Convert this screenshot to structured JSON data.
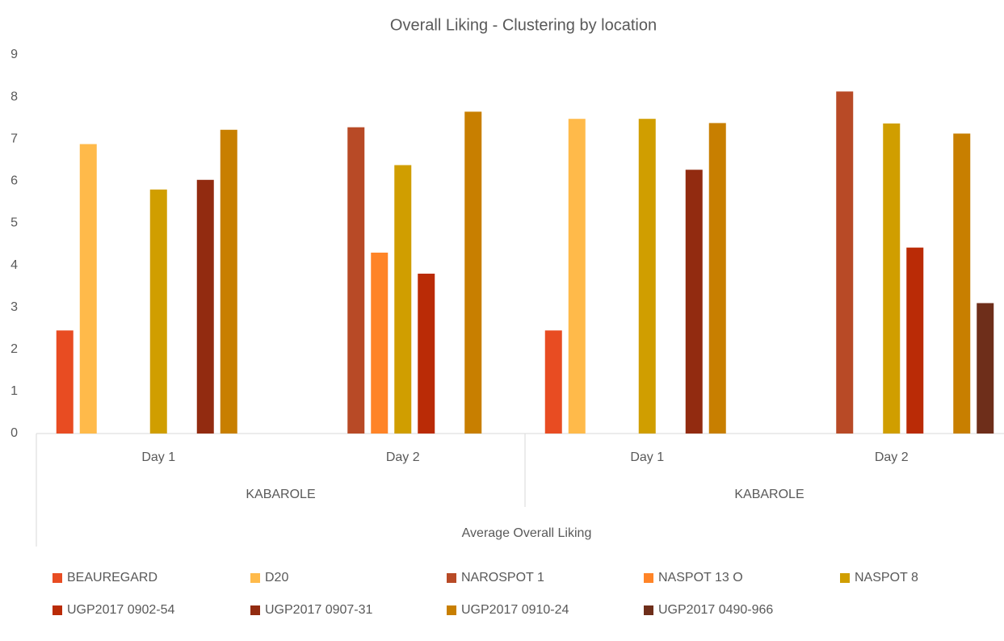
{
  "chart_data": {
    "type": "bar",
    "title": "Overall Liking - Clustering by location",
    "categories": [
      "Day 1",
      "Day 2",
      "Day 1",
      "Day 2"
    ],
    "category_groups": [
      "KABAROLE",
      "KABAROLE"
    ],
    "category_super": "Average Overall Liking",
    "ylim": [
      0,
      9
    ],
    "yticks": [
      0,
      1,
      2,
      3,
      4,
      5,
      6,
      7,
      8,
      9
    ],
    "grid": false,
    "legend": "bottom",
    "series": [
      {
        "name": "BEAUREGARD",
        "color": "#e84c22",
        "values": [
          2.45,
          null,
          2.45,
          null
        ]
      },
      {
        "name": "D20",
        "color": "#ffba4a",
        "values": [
          6.88,
          null,
          7.48,
          null
        ]
      },
      {
        "name": "NAROSPOT 1",
        "color": "#b84a26",
        "values": [
          null,
          7.28,
          null,
          8.13
        ]
      },
      {
        "name": "NASPOT 13 O",
        "color": "#ff8427",
        "values": [
          null,
          4.3,
          null,
          null
        ]
      },
      {
        "name": "NASPOT 8",
        "color": "#d09e00",
        "values": [
          5.8,
          6.38,
          7.48,
          7.37
        ]
      },
      {
        "name": "UGP2017 0902-54",
        "color": "#ba2b06",
        "values": [
          null,
          3.8,
          null,
          4.42
        ]
      },
      {
        "name": "UGP2017 0907-31",
        "color": "#922b10",
        "values": [
          6.03,
          null,
          6.27,
          null
        ]
      },
      {
        "name": "UGP2017 0910-24",
        "color": "#c87f00",
        "values": [
          7.22,
          7.65,
          7.38,
          7.13
        ]
      },
      {
        "name": "UGP2017 0490-966",
        "color": "#6e2e1a",
        "values": [
          null,
          null,
          null,
          3.1
        ]
      }
    ]
  }
}
